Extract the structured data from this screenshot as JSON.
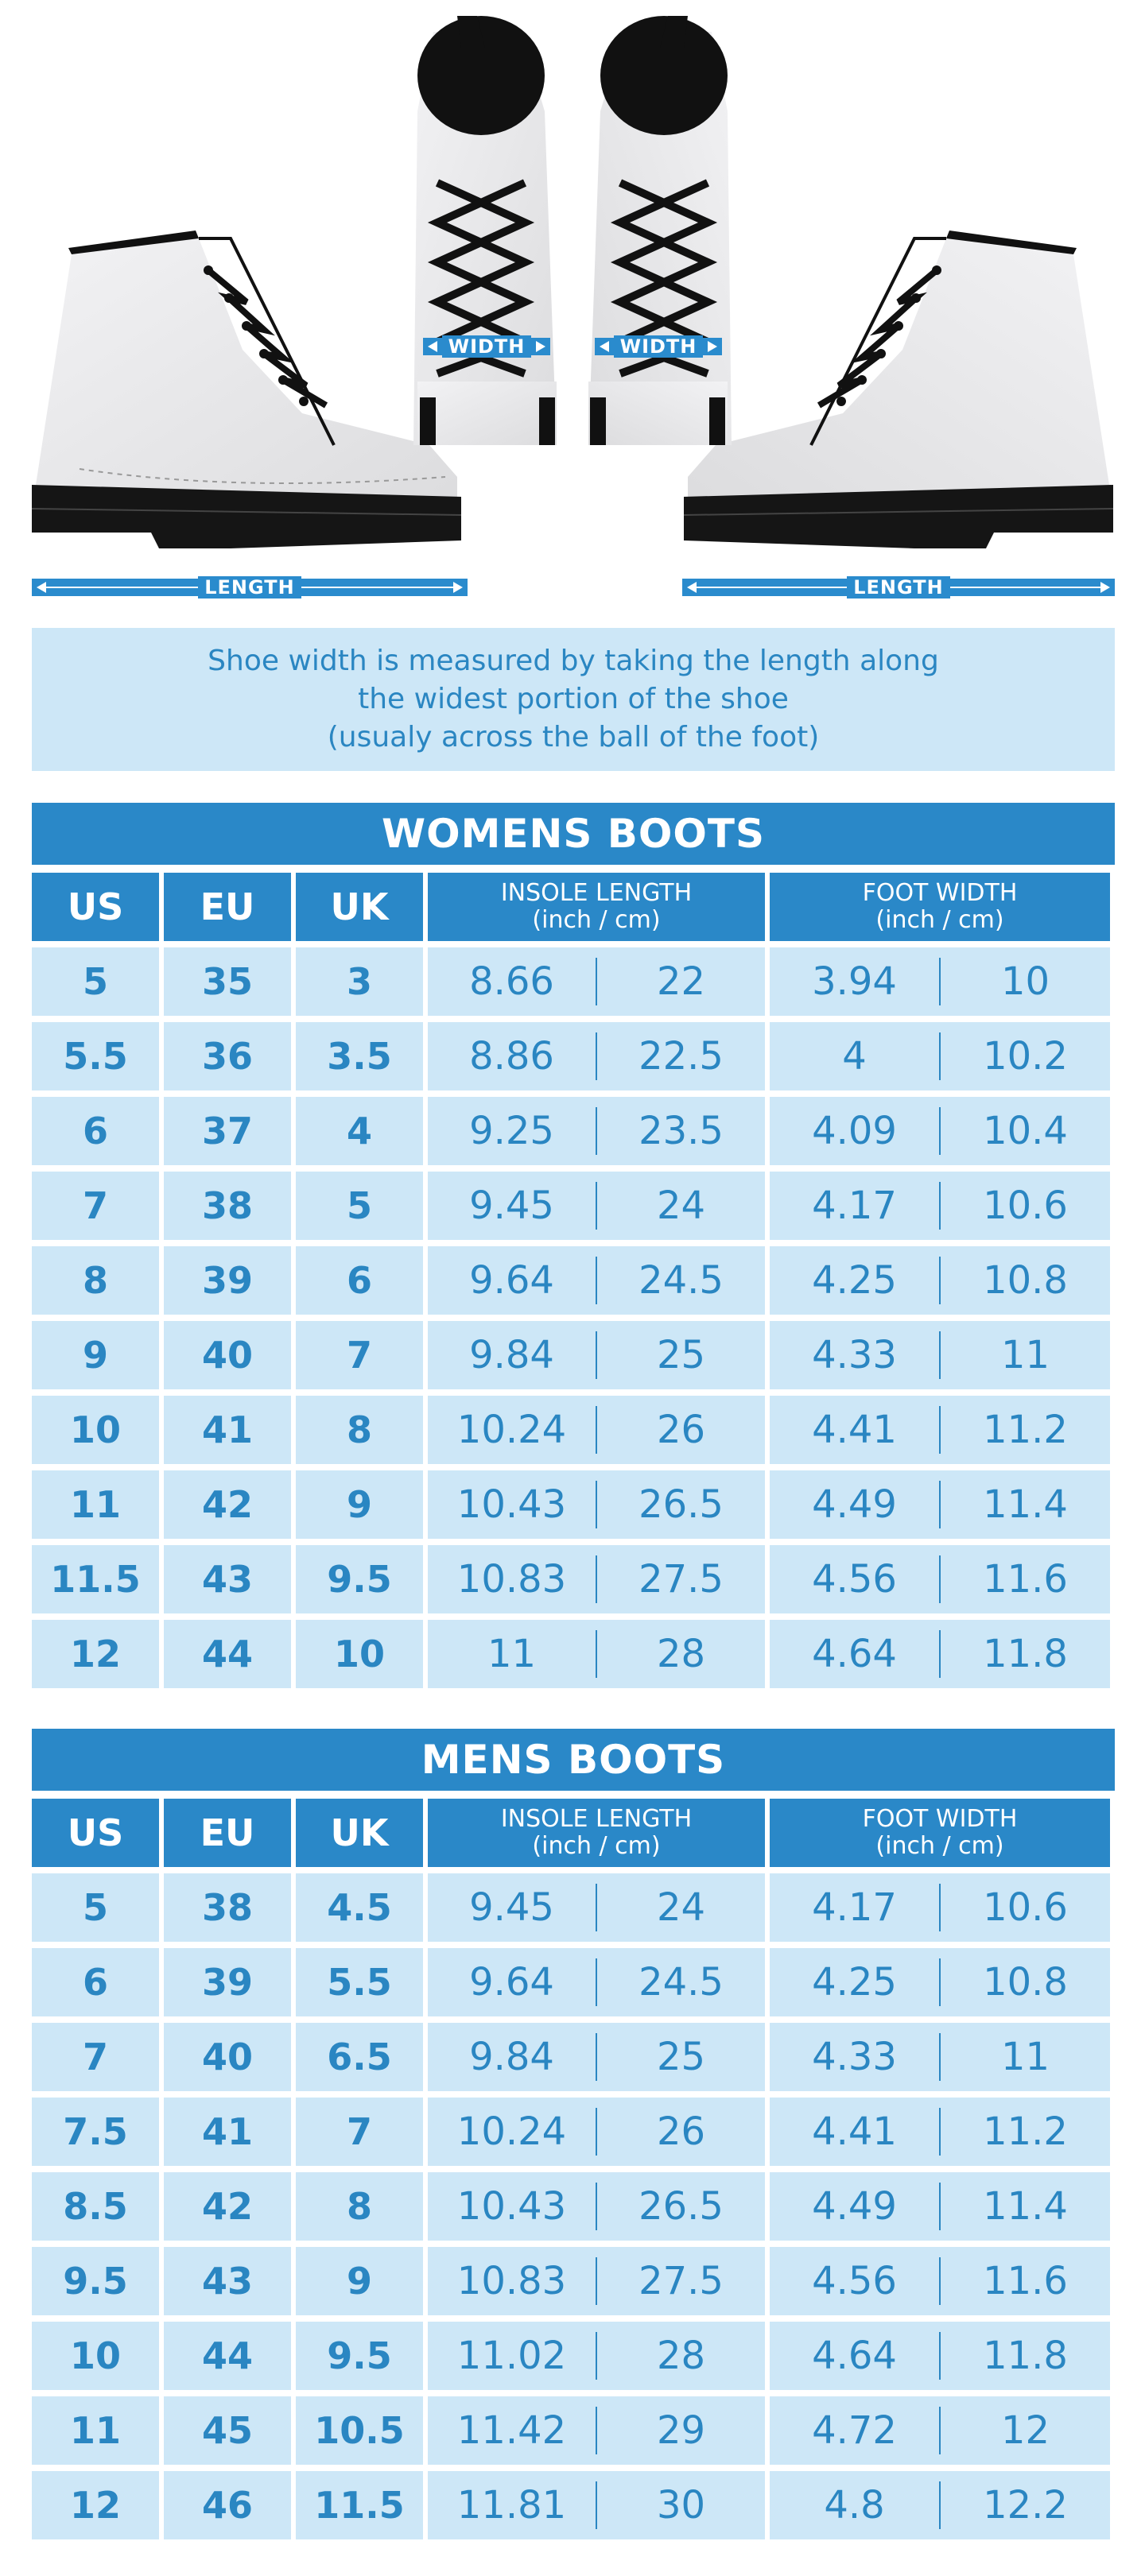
{
  "illustration": {
    "width_label": "WIDTH",
    "length_label": "LENGTH"
  },
  "note": {
    "line1": "Shoe width is measured by taking the length along",
    "line2": "the widest portion of the shoe",
    "line3": "(usualy across the ball of the foot)"
  },
  "colors": {
    "accent": "#2a88c8",
    "light": "#cde7f7"
  },
  "columns": {
    "us": "US",
    "eu": "EU",
    "uk": "UK",
    "insole": "INSOLE LENGTH",
    "foot": "FOOT WIDTH",
    "unit": "(inch / cm)"
  },
  "womens": {
    "title": "WOMENS BOOTS",
    "rows": [
      {
        "us": "5",
        "eu": "35",
        "uk": "3",
        "in_in": "8.66",
        "in_cm": "22",
        "fw_in": "3.94",
        "fw_cm": "10"
      },
      {
        "us": "5.5",
        "eu": "36",
        "uk": "3.5",
        "in_in": "8.86",
        "in_cm": "22.5",
        "fw_in": "4",
        "fw_cm": "10.2"
      },
      {
        "us": "6",
        "eu": "37",
        "uk": "4",
        "in_in": "9.25",
        "in_cm": "23.5",
        "fw_in": "4.09",
        "fw_cm": "10.4"
      },
      {
        "us": "7",
        "eu": "38",
        "uk": "5",
        "in_in": "9.45",
        "in_cm": "24",
        "fw_in": "4.17",
        "fw_cm": "10.6"
      },
      {
        "us": "8",
        "eu": "39",
        "uk": "6",
        "in_in": "9.64",
        "in_cm": "24.5",
        "fw_in": "4.25",
        "fw_cm": "10.8"
      },
      {
        "us": "9",
        "eu": "40",
        "uk": "7",
        "in_in": "9.84",
        "in_cm": "25",
        "fw_in": "4.33",
        "fw_cm": "11"
      },
      {
        "us": "10",
        "eu": "41",
        "uk": "8",
        "in_in": "10.24",
        "in_cm": "26",
        "fw_in": "4.41",
        "fw_cm": "11.2"
      },
      {
        "us": "11",
        "eu": "42",
        "uk": "9",
        "in_in": "10.43",
        "in_cm": "26.5",
        "fw_in": "4.49",
        "fw_cm": "11.4"
      },
      {
        "us": "11.5",
        "eu": "43",
        "uk": "9.5",
        "in_in": "10.83",
        "in_cm": "27.5",
        "fw_in": "4.56",
        "fw_cm": "11.6"
      },
      {
        "us": "12",
        "eu": "44",
        "uk": "10",
        "in_in": "11",
        "in_cm": "28",
        "fw_in": "4.64",
        "fw_cm": "11.8"
      }
    ]
  },
  "mens": {
    "title": "MENS BOOTS",
    "rows": [
      {
        "us": "5",
        "eu": "38",
        "uk": "4.5",
        "in_in": "9.45",
        "in_cm": "24",
        "fw_in": "4.17",
        "fw_cm": "10.6"
      },
      {
        "us": "6",
        "eu": "39",
        "uk": "5.5",
        "in_in": "9.64",
        "in_cm": "24.5",
        "fw_in": "4.25",
        "fw_cm": "10.8"
      },
      {
        "us": "7",
        "eu": "40",
        "uk": "6.5",
        "in_in": "9.84",
        "in_cm": "25",
        "fw_in": "4.33",
        "fw_cm": "11"
      },
      {
        "us": "7.5",
        "eu": "41",
        "uk": "7",
        "in_in": "10.24",
        "in_cm": "26",
        "fw_in": "4.41",
        "fw_cm": "11.2"
      },
      {
        "us": "8.5",
        "eu": "42",
        "uk": "8",
        "in_in": "10.43",
        "in_cm": "26.5",
        "fw_in": "4.49",
        "fw_cm": "11.4"
      },
      {
        "us": "9.5",
        "eu": "43",
        "uk": "9",
        "in_in": "10.83",
        "in_cm": "27.5",
        "fw_in": "4.56",
        "fw_cm": "11.6"
      },
      {
        "us": "10",
        "eu": "44",
        "uk": "9.5",
        "in_in": "11.02",
        "in_cm": "28",
        "fw_in": "4.64",
        "fw_cm": "11.8"
      },
      {
        "us": "11",
        "eu": "45",
        "uk": "10.5",
        "in_in": "11.42",
        "in_cm": "29",
        "fw_in": "4.72",
        "fw_cm": "12"
      },
      {
        "us": "12",
        "eu": "46",
        "uk": "11.5",
        "in_in": "11.81",
        "in_cm": "30",
        "fw_in": "4.8",
        "fw_cm": "12.2"
      }
    ]
  }
}
